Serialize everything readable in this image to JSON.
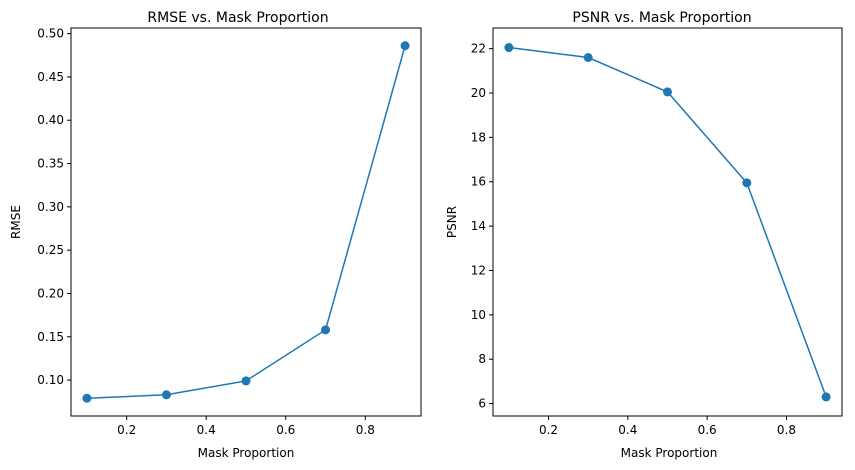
{
  "chart_data": [
    {
      "type": "line",
      "title": "RMSE vs. Mask Proportion",
      "xlabel": "Mask Proportion",
      "ylabel": "RMSE",
      "x": [
        0.1,
        0.3,
        0.5,
        0.7,
        0.9
      ],
      "series": [
        {
          "values": [
            0.079,
            0.083,
            0.099,
            0.158,
            0.486
          ]
        }
      ],
      "xlim": [
        0.06,
        0.94
      ],
      "ylim": [
        0.0585,
        0.5065
      ],
      "xticks": [
        0.2,
        0.4,
        0.6,
        0.8
      ],
      "yticks": [
        0.1,
        0.15,
        0.2,
        0.25,
        0.3,
        0.35,
        0.4,
        0.45,
        0.5
      ],
      "xtick_labels": [
        "0.2",
        "0.4",
        "0.6",
        "0.8"
      ],
      "ytick_labels": [
        "0.10",
        "0.15",
        "0.20",
        "0.25",
        "0.30",
        "0.35",
        "0.40",
        "0.45",
        "0.50"
      ],
      "grid": false,
      "color": "#1f77b4"
    },
    {
      "type": "line",
      "title": "PSNR vs. Mask Proportion",
      "xlabel": "Mask Proportion",
      "ylabel": "PSNR",
      "x": [
        0.1,
        0.3,
        0.5,
        0.7,
        0.9
      ],
      "series": [
        {
          "values": [
            22.05,
            21.6,
            20.05,
            15.95,
            6.3
          ]
        }
      ],
      "xlim": [
        0.06,
        0.94
      ],
      "ylim": [
        5.44,
        22.93
      ],
      "xticks": [
        0.2,
        0.4,
        0.6,
        0.8
      ],
      "yticks": [
        6,
        8,
        10,
        12,
        14,
        16,
        18,
        20,
        22
      ],
      "xtick_labels": [
        "0.2",
        "0.4",
        "0.6",
        "0.8"
      ],
      "ytick_labels": [
        "6",
        "8",
        "10",
        "12",
        "14",
        "16",
        "18",
        "20",
        "22"
      ],
      "grid": false,
      "color": "#1f77b4"
    }
  ]
}
